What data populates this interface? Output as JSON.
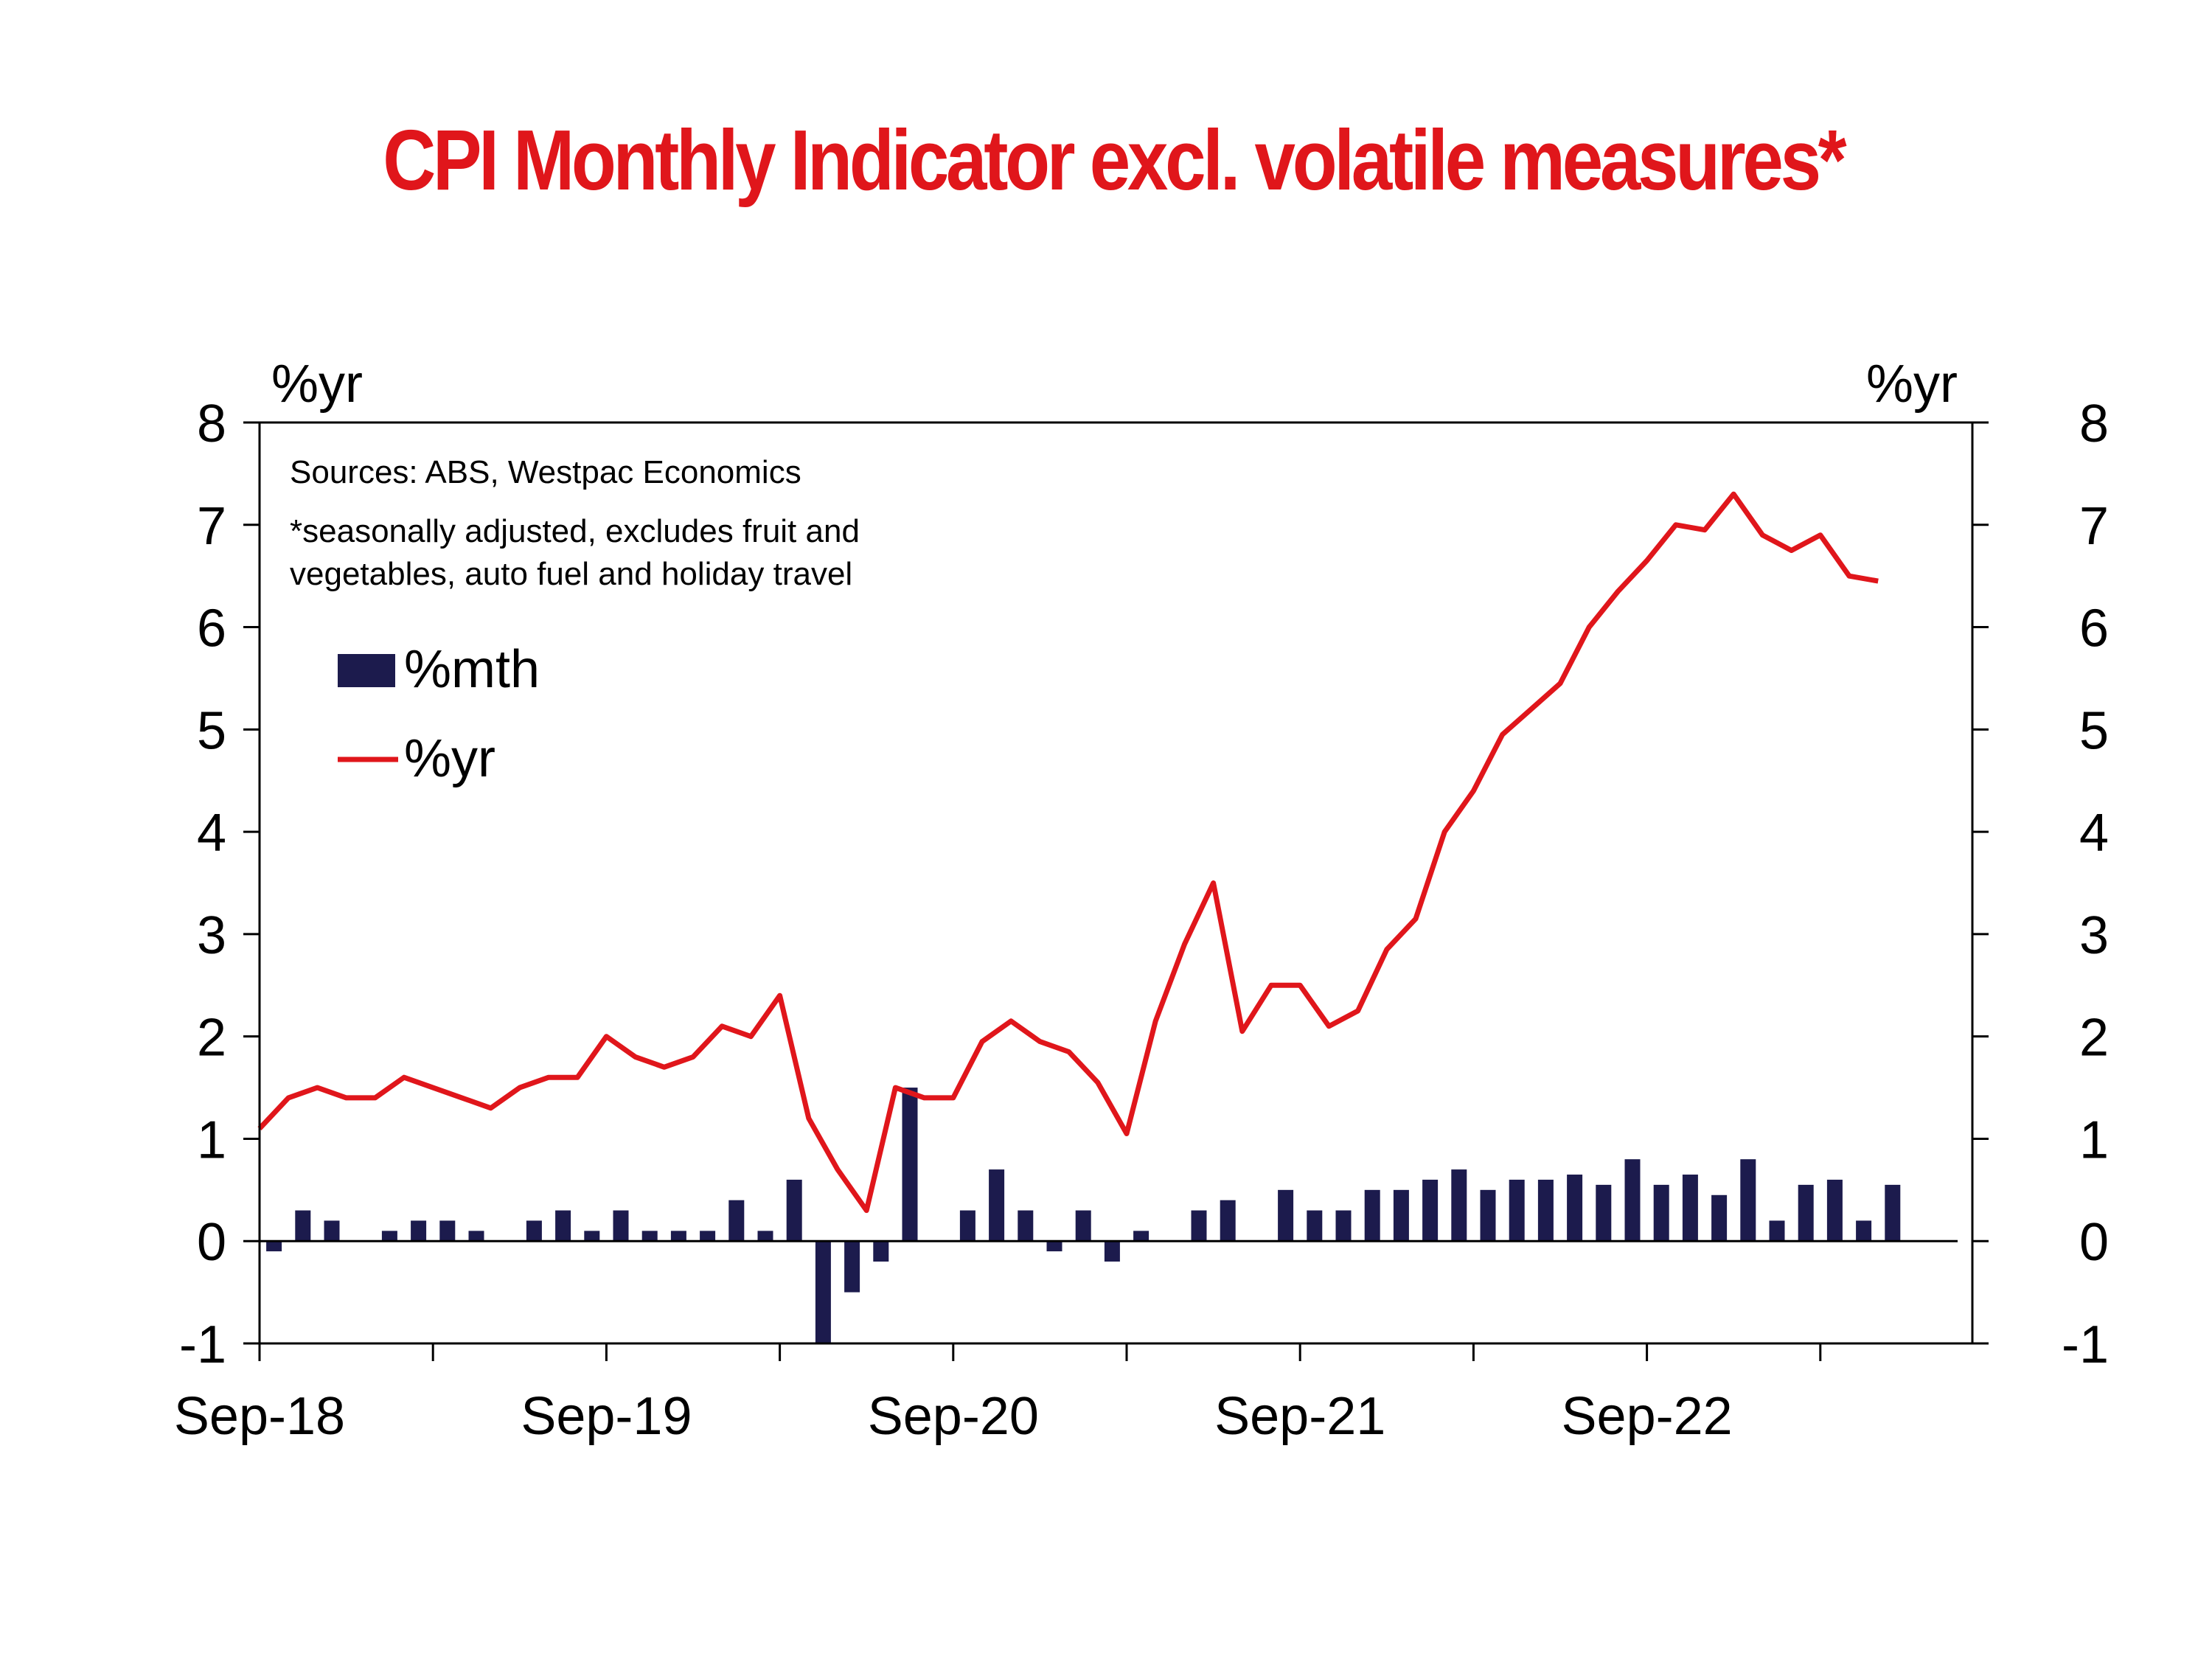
{
  "chart_data": {
    "type": "bar+line",
    "title": "CPI Monthly Indicator excl. volatile measures*",
    "notes": [
      "Sources: ABS, Westpac Economics",
      "*seasonally adjusted, excludes fruit and",
      "vegetables, auto fuel and holiday travel"
    ],
    "y_left_unit": "%yr",
    "y_right_unit": "%yr",
    "ylim": [
      -1,
      8
    ],
    "y_ticks": [
      "-1",
      "0",
      "1",
      "2",
      "3",
      "4",
      "5",
      "6",
      "7",
      "8"
    ],
    "x_tick_labels": [
      "Sep-18",
      "Sep-19",
      "Sep-20",
      "Sep-21",
      "Sep-22"
    ],
    "legend_position": "upper-left",
    "colors": {
      "bar": "#1c1b4d",
      "line": "#e0161b",
      "title": "#e0161b"
    },
    "x": [
      "Sep-18",
      "Oct-18",
      "Nov-18",
      "Dec-18",
      "Jan-19",
      "Feb-19",
      "Mar-19",
      "Apr-19",
      "May-19",
      "Jun-19",
      "Jul-19",
      "Aug-19",
      "Sep-19",
      "Oct-19",
      "Nov-19",
      "Dec-19",
      "Jan-20",
      "Feb-20",
      "Mar-20",
      "Apr-20",
      "May-20",
      "Jun-20",
      "Jul-20",
      "Aug-20",
      "Sep-20",
      "Oct-20",
      "Nov-20",
      "Dec-20",
      "Jan-21",
      "Feb-21",
      "Mar-21",
      "Apr-21",
      "May-21",
      "Jun-21",
      "Jul-21",
      "Aug-21",
      "Sep-21",
      "Oct-21",
      "Nov-21",
      "Dec-21",
      "Jan-22",
      "Feb-22",
      "Mar-22",
      "Apr-22",
      "May-22",
      "Jun-22",
      "Jul-22",
      "Aug-22",
      "Sep-22",
      "Oct-22",
      "Nov-22",
      "Dec-22",
      "Jan-23",
      "Feb-23",
      "Mar-23",
      "Apr-23",
      "May-23",
      "Jun-23"
    ],
    "series": [
      {
        "name": "%mth",
        "type": "bar",
        "values": [
          -0.1,
          0.3,
          0.2,
          null,
          0.1,
          0.2,
          0.2,
          0.1,
          null,
          0.2,
          0.3,
          0.1,
          0.3,
          0.1,
          0.1,
          0.1,
          0.4,
          0.1,
          0.6,
          -1.0,
          -0.5,
          -0.2,
          1.5,
          null,
          0.3,
          0.7,
          0.3,
          -0.1,
          0.3,
          -0.2,
          0.1,
          null,
          0.3,
          0.4,
          null,
          0.5,
          0.3,
          0.3,
          0.5,
          0.5,
          0.6,
          0.7,
          0.5,
          0.6,
          0.6,
          0.65,
          0.55,
          0.8,
          0.55,
          0.65,
          0.45,
          0.8,
          0.2,
          0.55,
          0.6,
          0.2,
          0.55,
          null
        ]
      },
      {
        "name": "%yr",
        "type": "line",
        "values": [
          1.1,
          1.4,
          1.5,
          1.4,
          1.4,
          1.6,
          1.5,
          1.4,
          1.3,
          1.5,
          1.6,
          1.6,
          2.0,
          1.8,
          1.7,
          1.8,
          2.1,
          2.0,
          2.4,
          1.2,
          0.7,
          0.3,
          1.5,
          1.4,
          1.4,
          1.95,
          2.15,
          1.95,
          1.85,
          1.55,
          1.05,
          2.15,
          2.9,
          3.5,
          2.05,
          2.5,
          2.5,
          2.1,
          2.25,
          2.85,
          3.15,
          4.0,
          4.4,
          4.95,
          5.2,
          5.45,
          6.0,
          6.35,
          6.65,
          7.0,
          6.95,
          7.3,
          6.9,
          6.75,
          6.9,
          6.5,
          6.45,
          null
        ]
      }
    ]
  }
}
